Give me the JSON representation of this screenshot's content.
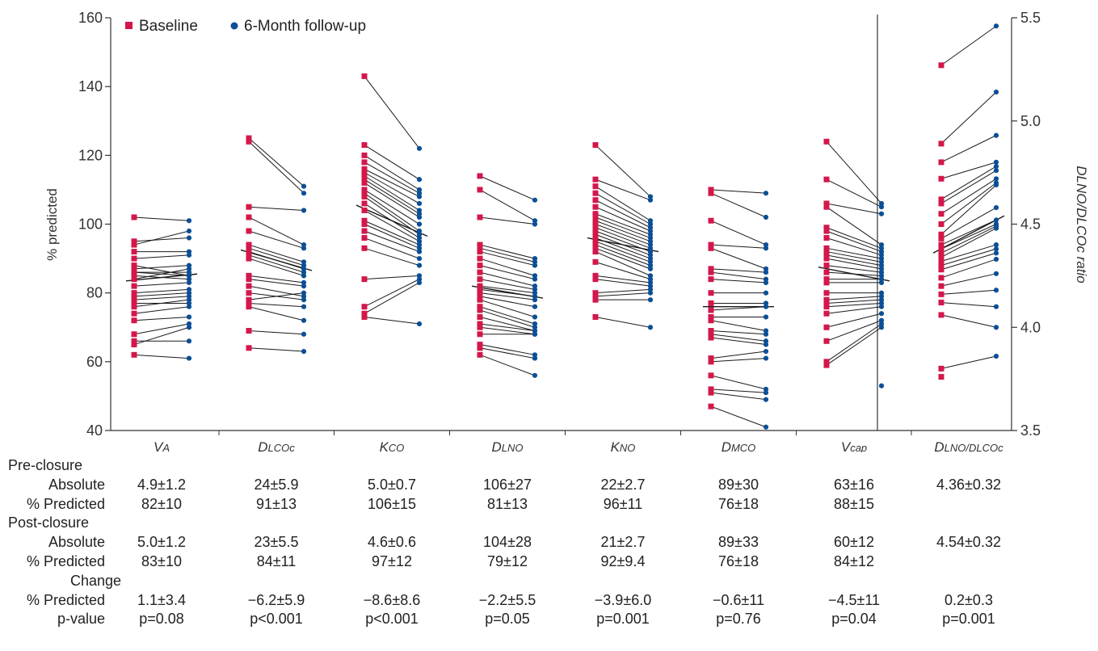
{
  "chart_data": {
    "type": "scatter",
    "subtype": "paired-slope",
    "left_axis": {
      "label": "% predicted",
      "ylim": [
        40,
        160
      ],
      "ticks": [
        40,
        60,
        80,
        100,
        120,
        140,
        160
      ]
    },
    "right_axis": {
      "label": "DLNO/DLCOc ratio",
      "ylim": [
        3.5,
        5.5
      ],
      "ticks": [
        "3.5",
        "4.0",
        "4.5",
        "5.0",
        "5.5"
      ]
    },
    "legend": {
      "position": "top-left",
      "items": [
        {
          "label": "Baseline",
          "marker": "square",
          "color": "#d4174a"
        },
        {
          "label": "6-Month follow-up",
          "marker": "circle",
          "color": "#0b4f96"
        }
      ]
    },
    "colors": {
      "baseline": "#d4174a",
      "followup": "#0b4f96",
      "line": "#1a1a1a"
    },
    "categories": [
      "VA",
      "DLCOc",
      "KCO",
      "DLNO",
      "KNO",
      "DMCO",
      "Vcap",
      "DLNO/DLCOc"
    ],
    "category_labels": [
      {
        "main": "V",
        "sub": "A"
      },
      {
        "main": "D",
        "sub": "LCOc"
      },
      {
        "main": "K",
        "sub": "CO"
      },
      {
        "main": "D",
        "sub": "LNO"
      },
      {
        "main": "K",
        "sub": "NO"
      },
      {
        "main": "D",
        "sub": "MCO"
      },
      {
        "main": "V",
        "sub": "cap"
      },
      {
        "main": "D",
        "sub": "LNO/DLCOc"
      }
    ],
    "groups": [
      {
        "name": "VA",
        "axis": "left",
        "mean_line": [
          83.5,
          85.5
        ],
        "baseline": [
          102,
          95,
          94,
          92,
          90,
          88,
          87,
          86,
          86,
          85,
          84,
          82,
          80,
          79,
          78,
          77,
          76,
          74,
          72,
          68,
          66,
          65,
          62
        ],
        "followup": [
          101,
          96,
          98,
          92,
          91,
          85,
          88,
          86,
          85,
          84,
          87,
          83,
          81,
          80,
          79,
          77,
          78,
          76,
          73,
          71,
          66,
          70,
          61
        ]
      },
      {
        "name": "DLCOc",
        "axis": "left",
        "mean_line": [
          92.5,
          86.5
        ],
        "baseline": [
          125,
          124,
          105,
          102,
          98,
          94,
          93,
          92,
          91,
          90,
          85,
          84,
          82,
          80,
          78,
          77,
          76,
          69,
          64
        ],
        "followup": [
          111,
          109,
          104,
          94,
          93,
          89,
          88,
          87,
          86,
          85,
          83,
          82,
          79,
          78,
          80,
          76,
          72,
          68,
          63
        ],
        "color_hint": "",
        "note": ""
      },
      {
        "name": "KCO",
        "axis": "left",
        "mean_line": [
          105.5,
          96.5
        ],
        "baseline": [
          143,
          123,
          120,
          118,
          116,
          115,
          114,
          113,
          112,
          110,
          109,
          108,
          106,
          104,
          101,
          100,
          98,
          96,
          93,
          84,
          76,
          74,
          73
        ],
        "followup": [
          122,
          113,
          110,
          109,
          108,
          106,
          104,
          103,
          102,
          100,
          98,
          97,
          96,
          95,
          94,
          93,
          92,
          90,
          88,
          85,
          84,
          83,
          71
        ]
      },
      {
        "name": "DLNO",
        "axis": "left",
        "mean_line": [
          82,
          78.5
        ],
        "baseline": [
          114,
          110,
          102,
          94,
          93,
          92,
          90,
          88,
          86,
          84,
          82,
          81,
          80,
          79,
          78,
          76,
          75,
          73,
          71,
          70,
          68,
          65,
          64,
          62
        ],
        "followup": [
          107,
          101,
          100,
          90,
          89,
          88,
          85,
          84,
          82,
          81,
          80,
          79,
          78,
          76,
          73,
          71,
          70,
          69,
          69,
          68,
          68,
          62,
          61,
          56
        ]
      },
      {
        "name": "KNO",
        "axis": "left",
        "mean_line": [
          96,
          92
        ],
        "baseline": [
          123,
          113,
          111,
          109,
          107,
          105,
          103,
          102,
          101,
          100,
          99,
          98,
          97,
          96,
          95,
          94,
          93,
          92,
          89,
          85,
          84,
          80,
          79,
          78,
          73
        ],
        "followup": [
          108,
          107,
          101,
          100,
          99,
          98,
          97,
          96,
          95,
          94,
          93,
          92,
          91,
          90,
          89,
          88,
          87,
          85,
          84,
          83,
          82,
          81,
          80,
          78,
          70
        ]
      },
      {
        "name": "DMCO",
        "axis": "left",
        "mean_line": [
          76,
          76
        ],
        "baseline": [
          110,
          109,
          101,
          94,
          93,
          87,
          86,
          84,
          80,
          77,
          75,
          73,
          72,
          69,
          68,
          67,
          61,
          60,
          56,
          52,
          51,
          47
        ],
        "followup": [
          109,
          102,
          94,
          93,
          87,
          86,
          84,
          83,
          80,
          77,
          76,
          73,
          69,
          68,
          66,
          65,
          63,
          61,
          52,
          51,
          49,
          41
        ]
      },
      {
        "name": "Vcap",
        "axis": "left",
        "mean_line": [
          87.5,
          83.5
        ],
        "baseline": [
          124,
          113,
          106,
          105,
          99,
          98,
          96,
          93,
          92,
          91,
          90,
          88,
          86,
          84,
          83,
          80,
          78,
          77,
          76,
          74,
          70,
          66,
          60,
          59
        ],
        "followup": [
          106,
          105,
          103,
          94,
          93,
          92,
          91,
          90,
          89,
          88,
          87,
          86,
          85,
          84,
          83,
          80,
          79,
          78,
          77,
          76,
          74,
          72,
          71,
          70,
          53
        ]
      },
      {
        "name": "DLNO/DLCOc",
        "axis": "right",
        "mean_line": [
          4.36,
          4.54
        ],
        "baseline": [
          5.27,
          4.89,
          4.8,
          4.72,
          4.62,
          4.6,
          4.55,
          4.5,
          4.45,
          4.43,
          4.4,
          4.38,
          4.36,
          4.34,
          4.32,
          4.3,
          4.28,
          4.24,
          4.2,
          4.16,
          4.12,
          4.06,
          3.8,
          3.76
        ],
        "followup": [
          5.46,
          5.14,
          4.93,
          4.8,
          4.78,
          4.76,
          4.72,
          4.7,
          4.69,
          4.58,
          4.52,
          4.5,
          4.49,
          4.48,
          4.4,
          4.38,
          4.36,
          4.33,
          4.26,
          4.18,
          4.1,
          4.0,
          3.86
        ]
      }
    ]
  },
  "stats_table": {
    "row_labels": {
      "pre": "Pre-closure",
      "post": "Post-closure",
      "change": "Change",
      "absolute": "Absolute",
      "predicted": "% Predicted",
      "pvalue": "p-value"
    },
    "pre_absolute": [
      "4.9±1.2",
      "24±5.9",
      "5.0±0.7",
      "106±27",
      "22±2.7",
      "89±30",
      "63±16",
      "4.36±0.32"
    ],
    "pre_predicted": [
      "82±10",
      "91±13",
      "106±15",
      "81±13",
      "96±11",
      "76±18",
      "88±15",
      ""
    ],
    "post_absolute": [
      "5.0±1.2",
      "23±5.5",
      "4.6±0.6",
      "104±28",
      "21±2.7",
      "89±33",
      "60±12",
      "4.54±0.32"
    ],
    "post_predicted": [
      "83±10",
      "84±11",
      "97±12",
      "79±12",
      "92±9.4",
      "76±18",
      "84±12",
      ""
    ],
    "change_predicted": [
      "1.1±3.4",
      "−6.2±5.9",
      "−8.6±8.6",
      "−2.2±5.5",
      "−3.9±6.0",
      "−0.6±11",
      "−4.5±11",
      "0.2±0.3"
    ],
    "pvalues": [
      "p=0.08",
      "p<0.001",
      "p<0.001",
      "p=0.05",
      "p=0.001",
      "p=0.76",
      "p=0.04",
      "p=0.001"
    ]
  }
}
